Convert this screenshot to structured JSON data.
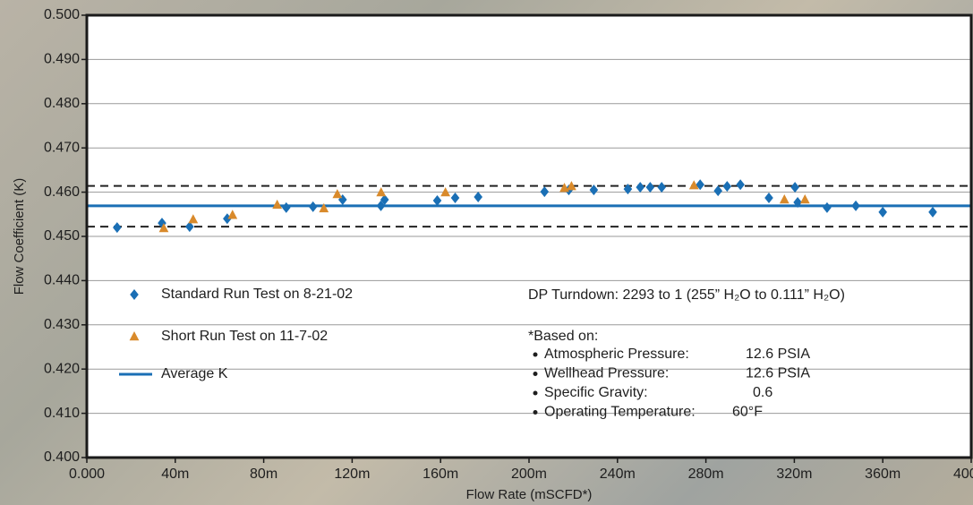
{
  "chart_data": {
    "type": "scatter",
    "xlabel": "Flow Rate (mSCFD*)",
    "ylabel": "Flow Coefficient (K)",
    "xlim": [
      0,
      400
    ],
    "ylim": [
      0.4,
      0.5
    ],
    "xticks": [
      {
        "value": 0,
        "label": "0.000"
      },
      {
        "value": 40,
        "label": "40m"
      },
      {
        "value": 80,
        "label": "80m"
      },
      {
        "value": 120,
        "label": "120m"
      },
      {
        "value": 160,
        "label": "160m"
      },
      {
        "value": 200,
        "label": "200m"
      },
      {
        "value": 240,
        "label": "240m"
      },
      {
        "value": 280,
        "label": "280m"
      },
      {
        "value": 320,
        "label": "320m"
      },
      {
        "value": 360,
        "label": "360m"
      },
      {
        "value": 400,
        "label": "400m"
      }
    ],
    "yticks": [
      {
        "value": 0.4,
        "label": "0.400"
      },
      {
        "value": 0.41,
        "label": "0.410"
      },
      {
        "value": 0.42,
        "label": "0.420"
      },
      {
        "value": 0.43,
        "label": "0.430"
      },
      {
        "value": 0.44,
        "label": "0.440"
      },
      {
        "value": 0.45,
        "label": "0.450"
      },
      {
        "value": 0.46,
        "label": "0.460"
      },
      {
        "value": 0.47,
        "label": "0.470"
      },
      {
        "value": 0.48,
        "label": "0.480"
      },
      {
        "value": 0.49,
        "label": "0.490"
      },
      {
        "value": 0.5,
        "label": "0.500"
      }
    ],
    "grid": true,
    "series": [
      {
        "name": "Standard Run Test on 8-21-02",
        "color": "#1a6fb5",
        "marker": "diamond",
        "x": [
          13.7,
          34.0,
          46.5,
          63.5,
          90.2,
          102.3,
          115.7,
          133.0,
          134.7,
          158.5,
          166.6,
          177.0,
          207.0,
          218.0,
          229.3,
          244.7,
          250.3,
          254.8,
          260.0,
          277.4,
          285.5,
          289.6,
          295.6,
          308.5,
          320.3,
          321.5,
          334.8,
          347.8,
          360.0,
          382.6
        ],
        "values": [
          0.452,
          0.453,
          0.4522,
          0.454,
          0.4565,
          0.4567,
          0.4583,
          0.4569,
          0.4583,
          0.4581,
          0.4587,
          0.4589,
          0.4601,
          0.4605,
          0.4605,
          0.4607,
          0.4611,
          0.4611,
          0.4611,
          0.4617,
          0.4603,
          0.4613,
          0.4617,
          0.4587,
          0.4611,
          0.4577,
          0.4565,
          0.4569,
          0.4555,
          0.4555
        ]
      },
      {
        "name": "Short Run Test on 11-7-02",
        "color": "#d98a2b",
        "marker": "triangle",
        "x": [
          34.8,
          48.1,
          65.9,
          86.1,
          107.2,
          113.3,
          133.1,
          162.2,
          216.0,
          219.2,
          274.6,
          315.5,
          324.8
        ],
        "values": [
          0.4518,
          0.4538,
          0.4548,
          0.4571,
          0.4563,
          0.4595,
          0.4599,
          0.4599,
          0.4609,
          0.4613,
          0.4615,
          0.4583,
          0.4583
        ]
      }
    ],
    "reference_lines": [
      {
        "name": "Average K",
        "value": 0.4569,
        "style": "solid",
        "color": "#1a6fb5"
      },
      {
        "value": 0.4614,
        "style": "dashed",
        "color": "#222222"
      },
      {
        "value": 0.4522,
        "style": "dashed",
        "color": "#222222"
      }
    ],
    "annotations": {
      "turndown": "DP Turndown: 2293 to 1 (255” H₂O to 0.111” H₂O)",
      "based_on_title": "*Based on:",
      "based_on": [
        {
          "label": "Atmospheric Pressure:",
          "value": "12.6 PSIA"
        },
        {
          "label": "Wellhead Pressure:",
          "value": "12.6 PSIA"
        },
        {
          "label": "Specific Gravity:",
          "value": "0.6"
        },
        {
          "label": "Operating Temperature:",
          "value": "60°F"
        }
      ]
    }
  }
}
